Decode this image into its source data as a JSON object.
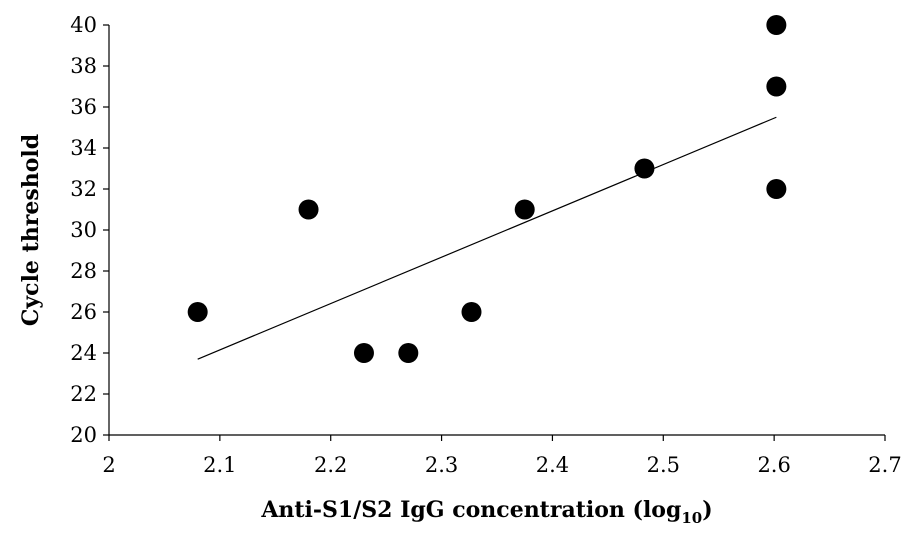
{
  "chart_data": {
    "type": "scatter",
    "title": "",
    "xlabel": {
      "main": "Anti-S1/S2 IgG concentration (log",
      "subscript": "10",
      "close": ")"
    },
    "ylabel": "Cycle threshold",
    "xlim": [
      2,
      2.7
    ],
    "ylim": [
      20,
      40
    ],
    "xticks": [
      "2",
      "2.1",
      "2.2",
      "2.3",
      "2.4",
      "2.5",
      "2.6",
      "2.7"
    ],
    "yticks": [
      "20",
      "22",
      "24",
      "26",
      "28",
      "30",
      "32",
      "34",
      "36",
      "38",
      "40"
    ],
    "grid": false,
    "series": [
      {
        "points": [
          {
            "x": 2.08,
            "y": 26
          },
          {
            "x": 2.18,
            "y": 31
          },
          {
            "x": 2.23,
            "y": 24
          },
          {
            "x": 2.27,
            "y": 24
          },
          {
            "x": 2.327,
            "y": 26
          },
          {
            "x": 2.375,
            "y": 31
          },
          {
            "x": 2.483,
            "y": 33
          },
          {
            "x": 2.602,
            "y": 40
          },
          {
            "x": 2.602,
            "y": 37
          },
          {
            "x": 2.602,
            "y": 32
          }
        ]
      }
    ],
    "trendline": {
      "x": [
        2.08,
        2.602
      ],
      "y": [
        23.7,
        35.5
      ]
    }
  }
}
